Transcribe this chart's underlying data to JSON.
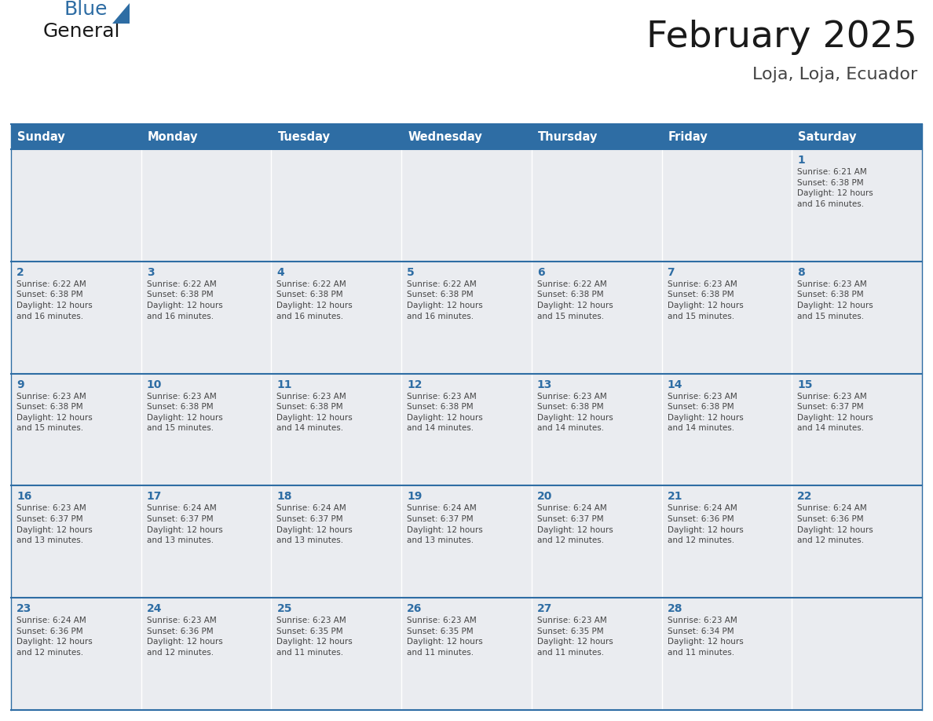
{
  "title": "February 2025",
  "subtitle": "Loja, Loja, Ecuador",
  "days_of_week": [
    "Sunday",
    "Monday",
    "Tuesday",
    "Wednesday",
    "Thursday",
    "Friday",
    "Saturday"
  ],
  "header_bg": "#2E6DA4",
  "header_text": "#FFFFFF",
  "cell_bg": "#EAECF0",
  "cell_bg_empty": "#EAECF0",
  "row_separator_color": "#2E6DA4",
  "day_num_color": "#2E6DA4",
  "cell_text_color": "#444444",
  "title_color": "#1a1a1a",
  "subtitle_color": "#444444",
  "logo_general_color": "#1a1a1a",
  "logo_blue_color": "#2E6DA4",
  "weeks": [
    {
      "cells": [
        {
          "day": null,
          "info": null
        },
        {
          "day": null,
          "info": null
        },
        {
          "day": null,
          "info": null
        },
        {
          "day": null,
          "info": null
        },
        {
          "day": null,
          "info": null
        },
        {
          "day": null,
          "info": null
        },
        {
          "day": 1,
          "info": "Sunrise: 6:21 AM\nSunset: 6:38 PM\nDaylight: 12 hours\nand 16 minutes."
        }
      ]
    },
    {
      "cells": [
        {
          "day": 2,
          "info": "Sunrise: 6:22 AM\nSunset: 6:38 PM\nDaylight: 12 hours\nand 16 minutes."
        },
        {
          "day": 3,
          "info": "Sunrise: 6:22 AM\nSunset: 6:38 PM\nDaylight: 12 hours\nand 16 minutes."
        },
        {
          "day": 4,
          "info": "Sunrise: 6:22 AM\nSunset: 6:38 PM\nDaylight: 12 hours\nand 16 minutes."
        },
        {
          "day": 5,
          "info": "Sunrise: 6:22 AM\nSunset: 6:38 PM\nDaylight: 12 hours\nand 16 minutes."
        },
        {
          "day": 6,
          "info": "Sunrise: 6:22 AM\nSunset: 6:38 PM\nDaylight: 12 hours\nand 15 minutes."
        },
        {
          "day": 7,
          "info": "Sunrise: 6:23 AM\nSunset: 6:38 PM\nDaylight: 12 hours\nand 15 minutes."
        },
        {
          "day": 8,
          "info": "Sunrise: 6:23 AM\nSunset: 6:38 PM\nDaylight: 12 hours\nand 15 minutes."
        }
      ]
    },
    {
      "cells": [
        {
          "day": 9,
          "info": "Sunrise: 6:23 AM\nSunset: 6:38 PM\nDaylight: 12 hours\nand 15 minutes."
        },
        {
          "day": 10,
          "info": "Sunrise: 6:23 AM\nSunset: 6:38 PM\nDaylight: 12 hours\nand 15 minutes."
        },
        {
          "day": 11,
          "info": "Sunrise: 6:23 AM\nSunset: 6:38 PM\nDaylight: 12 hours\nand 14 minutes."
        },
        {
          "day": 12,
          "info": "Sunrise: 6:23 AM\nSunset: 6:38 PM\nDaylight: 12 hours\nand 14 minutes."
        },
        {
          "day": 13,
          "info": "Sunrise: 6:23 AM\nSunset: 6:38 PM\nDaylight: 12 hours\nand 14 minutes."
        },
        {
          "day": 14,
          "info": "Sunrise: 6:23 AM\nSunset: 6:38 PM\nDaylight: 12 hours\nand 14 minutes."
        },
        {
          "day": 15,
          "info": "Sunrise: 6:23 AM\nSunset: 6:37 PM\nDaylight: 12 hours\nand 14 minutes."
        }
      ]
    },
    {
      "cells": [
        {
          "day": 16,
          "info": "Sunrise: 6:23 AM\nSunset: 6:37 PM\nDaylight: 12 hours\nand 13 minutes."
        },
        {
          "day": 17,
          "info": "Sunrise: 6:24 AM\nSunset: 6:37 PM\nDaylight: 12 hours\nand 13 minutes."
        },
        {
          "day": 18,
          "info": "Sunrise: 6:24 AM\nSunset: 6:37 PM\nDaylight: 12 hours\nand 13 minutes."
        },
        {
          "day": 19,
          "info": "Sunrise: 6:24 AM\nSunset: 6:37 PM\nDaylight: 12 hours\nand 13 minutes."
        },
        {
          "day": 20,
          "info": "Sunrise: 6:24 AM\nSunset: 6:37 PM\nDaylight: 12 hours\nand 12 minutes."
        },
        {
          "day": 21,
          "info": "Sunrise: 6:24 AM\nSunset: 6:36 PM\nDaylight: 12 hours\nand 12 minutes."
        },
        {
          "day": 22,
          "info": "Sunrise: 6:24 AM\nSunset: 6:36 PM\nDaylight: 12 hours\nand 12 minutes."
        }
      ]
    },
    {
      "cells": [
        {
          "day": 23,
          "info": "Sunrise: 6:24 AM\nSunset: 6:36 PM\nDaylight: 12 hours\nand 12 minutes."
        },
        {
          "day": 24,
          "info": "Sunrise: 6:23 AM\nSunset: 6:36 PM\nDaylight: 12 hours\nand 12 minutes."
        },
        {
          "day": 25,
          "info": "Sunrise: 6:23 AM\nSunset: 6:35 PM\nDaylight: 12 hours\nand 11 minutes."
        },
        {
          "day": 26,
          "info": "Sunrise: 6:23 AM\nSunset: 6:35 PM\nDaylight: 12 hours\nand 11 minutes."
        },
        {
          "day": 27,
          "info": "Sunrise: 6:23 AM\nSunset: 6:35 PM\nDaylight: 12 hours\nand 11 minutes."
        },
        {
          "day": 28,
          "info": "Sunrise: 6:23 AM\nSunset: 6:34 PM\nDaylight: 12 hours\nand 11 minutes."
        },
        {
          "day": null,
          "info": null
        }
      ]
    }
  ]
}
